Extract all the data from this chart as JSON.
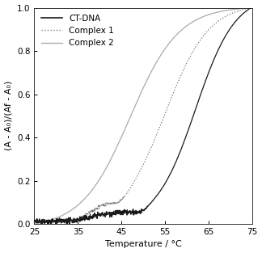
{
  "title": "",
  "xlabel": "Temperature / °C",
  "ylabel": "(A - A₀)/(Af - A₀)",
  "xlim": [
    25,
    75
  ],
  "ylim": [
    0.0,
    1.0
  ],
  "xticks": [
    25,
    35,
    45,
    55,
    65,
    75
  ],
  "yticks": [
    0.0,
    0.2,
    0.4,
    0.6,
    0.8,
    1.0
  ],
  "ct_dna_color": "#1a1a1a",
  "complex1_color": "#777777",
  "complex2_color": "#aaaaaa",
  "background_color": "#ffffff",
  "legend_labels": [
    "CT-DNA",
    "Complex 1",
    "Complex 2"
  ],
  "figsize": [
    3.24,
    3.13
  ],
  "dpi": 100
}
